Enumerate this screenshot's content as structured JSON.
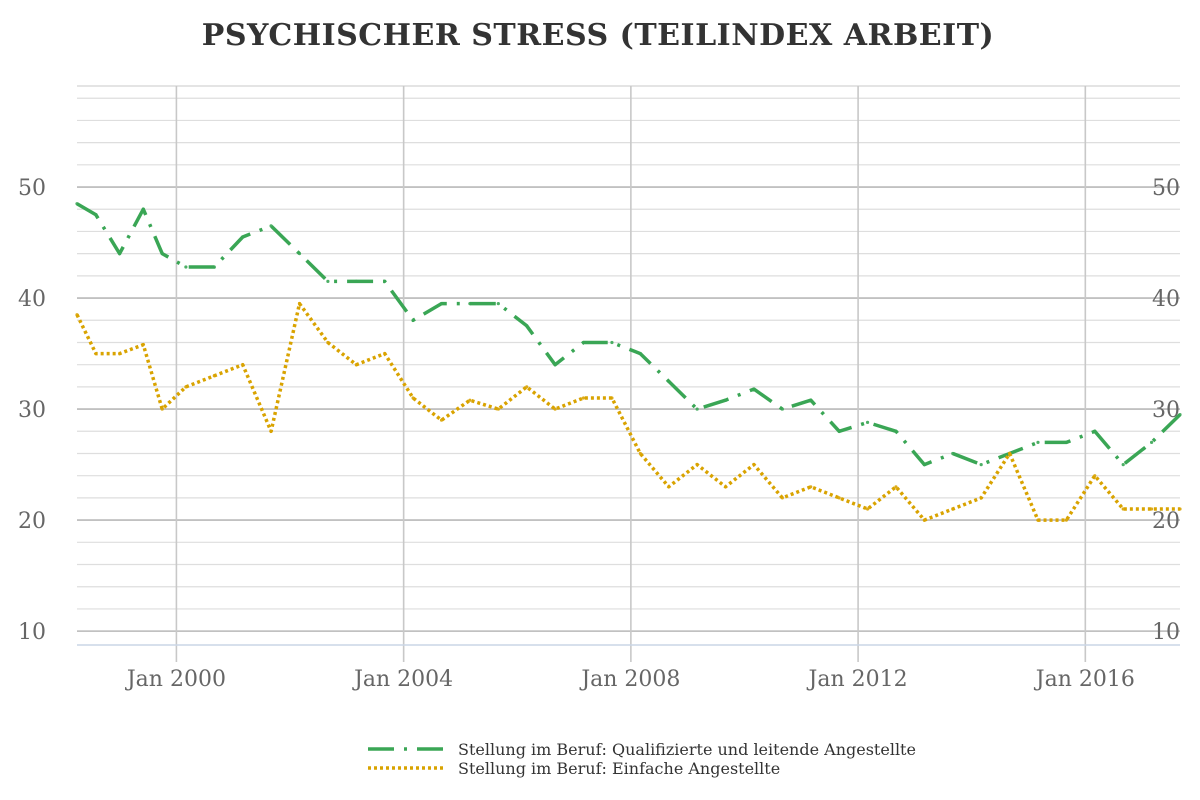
{
  "chart_data": {
    "type": "line",
    "title": "PSYCHISCHER STRESS (TEILINDEX ARBEIT)",
    "xlabel": "",
    "ylabel": "",
    "x_ticks": [
      "Jan 2000",
      "Jan 2004",
      "Jan 2008",
      "Jan 2012",
      "Jan 2016"
    ],
    "x_tick_dates": [
      "2000-01-01",
      "2004-01-01",
      "2008-01-01",
      "2012-01-01",
      "2016-01-01"
    ],
    "xlim": [
      "1998-04-01",
      "2017-09-01"
    ],
    "y_ticks_left": [
      10,
      20,
      30,
      40,
      50
    ],
    "y_ticks_right": [
      10,
      20,
      30,
      40,
      50
    ],
    "ylim": [
      8.75,
      59.1
    ],
    "y_minor_step": 2,
    "grid": true,
    "legend_position": "bottom",
    "series": [
      {
        "name": "Stellung im Beruf: Qualifizierte und leitende Angestellte",
        "color": "#3aa655",
        "style": "dash-dot",
        "x": [
          "1998-04-01",
          "1998-08-01",
          "1999-01-01",
          "1999-06-01",
          "1999-10-01",
          "2000-03-01",
          "2000-09-01",
          "2001-03-01",
          "2001-09-01",
          "2002-03-01",
          "2002-09-01",
          "2003-03-01",
          "2003-09-01",
          "2004-03-01",
          "2004-09-01",
          "2005-03-01",
          "2005-09-01",
          "2006-03-01",
          "2006-09-01",
          "2007-03-01",
          "2007-09-01",
          "2008-03-01",
          "2008-09-01",
          "2009-03-01",
          "2009-09-01",
          "2010-03-01",
          "2010-09-01",
          "2011-03-01",
          "2011-09-01",
          "2012-03-01",
          "2012-09-01",
          "2013-03-01",
          "2013-09-01",
          "2014-03-01",
          "2014-09-01",
          "2015-03-01",
          "2015-09-01",
          "2016-03-01",
          "2016-09-01",
          "2017-03-01",
          "2017-09-01"
        ],
        "values": [
          48.5,
          47.5,
          44.0,
          48.0,
          44.0,
          42.8,
          42.8,
          45.5,
          46.5,
          44.0,
          41.5,
          41.5,
          41.5,
          38.0,
          39.5,
          39.5,
          39.5,
          37.5,
          34.0,
          36.0,
          36.0,
          35.0,
          32.5,
          30.0,
          30.8,
          31.8,
          30.0,
          30.8,
          28.0,
          28.8,
          28.0,
          25.0,
          26.0,
          25.0,
          26.0,
          27.0,
          27.0,
          28.0,
          25.0,
          27.0,
          29.5
        ]
      },
      {
        "name": "Stellung im Beruf: Einfache Angestellte",
        "color": "#d9a300",
        "style": "dotted",
        "x": [
          "1998-04-01",
          "1998-08-01",
          "1999-01-01",
          "1999-06-01",
          "1999-10-01",
          "2000-03-01",
          "2000-09-01",
          "2001-03-01",
          "2001-09-01",
          "2002-03-01",
          "2002-09-01",
          "2003-03-01",
          "2003-09-01",
          "2004-03-01",
          "2004-09-01",
          "2005-03-01",
          "2005-09-01",
          "2006-03-01",
          "2006-09-01",
          "2007-03-01",
          "2007-09-01",
          "2008-03-01",
          "2008-09-01",
          "2009-03-01",
          "2009-09-01",
          "2010-03-01",
          "2010-09-01",
          "2011-03-01",
          "2011-09-01",
          "2012-03-01",
          "2012-09-01",
          "2013-03-01",
          "2013-09-01",
          "2014-03-01",
          "2014-09-01",
          "2015-03-01",
          "2015-09-01",
          "2016-03-01",
          "2016-09-01",
          "2017-03-01",
          "2017-09-01"
        ],
        "values": [
          38.5,
          35.0,
          35.0,
          35.8,
          30.0,
          32.0,
          33.0,
          34.0,
          28.0,
          39.5,
          36.0,
          34.0,
          35.0,
          31.0,
          29.0,
          30.8,
          30.0,
          32.0,
          30.0,
          31.0,
          31.0,
          26.0,
          23.0,
          25.0,
          23.0,
          25.0,
          22.0,
          23.0,
          22.0,
          21.0,
          23.0,
          20.0,
          21.0,
          22.0,
          26.0,
          20.0,
          20.0,
          24.0,
          21.0,
          21.0,
          21.0
        ]
      }
    ]
  }
}
